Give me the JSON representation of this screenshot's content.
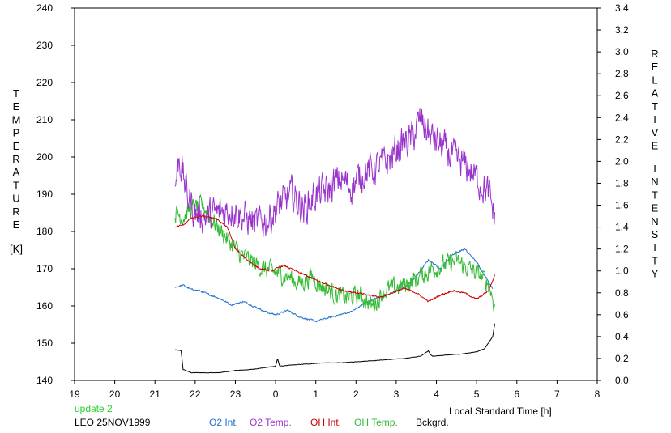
{
  "status_text": "update 2",
  "status_color": "#2ecc2e",
  "station_label": "LEO 25NOV1999",
  "chart_data": {
    "type": "line",
    "xlabel": "Local Standard Time [h]",
    "ylabel_left": "TEMPERATURE",
    "ylabel_left_unit": "[K]",
    "ylabel_right": "RELATIVE INTENSITY",
    "x_ticks": [
      "19",
      "20",
      "21",
      "22",
      "23",
      "0",
      "1",
      "2",
      "3",
      "4",
      "5",
      "6",
      "7",
      "8"
    ],
    "x_range": [
      19,
      32
    ],
    "y_left_range": [
      140,
      240
    ],
    "y_left_ticks": [
      "140",
      "150",
      "160",
      "170",
      "180",
      "190",
      "200",
      "210",
      "220",
      "230",
      "240"
    ],
    "y_right_range": [
      0.0,
      3.4
    ],
    "y_right_ticks": [
      "0.0",
      "0.2",
      "0.4",
      "0.6",
      "0.8",
      "1.0",
      "1.2",
      "1.4",
      "1.6",
      "1.8",
      "2.0",
      "2.2",
      "2.4",
      "2.6",
      "2.8",
      "3.0",
      "3.2",
      "3.4"
    ],
    "grid": false,
    "legend_position": "bottom",
    "series": [
      {
        "name": "O2 Int.",
        "axis": "right",
        "color": "#1f6fd0",
        "noise": 0.012,
        "x": [
          21.5,
          21.7,
          21.9,
          22.1,
          22.3,
          22.6,
          22.9,
          23.2,
          23.5,
          23.8,
          24.0,
          24.3,
          24.6,
          25.0,
          25.3,
          25.6,
          25.9,
          26.2,
          26.5,
          26.9,
          27.2,
          27.5,
          27.8,
          28.1,
          28.4,
          28.7,
          29.0,
          29.3,
          29.4
        ],
        "y": [
          0.85,
          0.87,
          0.83,
          0.82,
          0.79,
          0.75,
          0.69,
          0.72,
          0.67,
          0.62,
          0.6,
          0.64,
          0.58,
          0.54,
          0.57,
          0.6,
          0.63,
          0.7,
          0.75,
          0.8,
          0.85,
          0.95,
          1.1,
          1.02,
          1.15,
          1.2,
          1.08,
          0.9,
          0.84
        ]
      },
      {
        "name": "O2 Temp.",
        "axis": "left",
        "color": "#9933cc",
        "noise": 7,
        "x": [
          21.5,
          21.6,
          21.8,
          22.0,
          22.3,
          22.6,
          22.9,
          23.2,
          23.5,
          23.8,
          24.1,
          24.4,
          24.7,
          25.0,
          25.3,
          25.6,
          25.9,
          26.2,
          26.5,
          26.8,
          27.1,
          27.4,
          27.6,
          27.9,
          28.2,
          28.5,
          28.8,
          29.1,
          29.3,
          29.45
        ],
        "y": [
          192,
          200,
          190,
          185,
          184,
          185,
          186,
          184,
          182,
          183,
          187,
          190,
          186,
          190,
          191,
          194,
          192,
          196,
          197,
          199,
          203,
          205,
          210,
          205,
          202,
          199,
          197,
          193,
          190,
          184
        ]
      },
      {
        "name": "OH Int.",
        "axis": "right",
        "color": "#cc0000",
        "noise": 0.012,
        "x": [
          21.5,
          21.7,
          21.9,
          22.2,
          22.5,
          22.8,
          23.0,
          23.3,
          23.6,
          23.9,
          24.2,
          24.5,
          24.8,
          25.1,
          25.4,
          25.7,
          26.0,
          26.3,
          26.6,
          26.9,
          27.2,
          27.5,
          27.8,
          28.1,
          28.4,
          28.7,
          29.0,
          29.3,
          29.45
        ],
        "y": [
          1.4,
          1.42,
          1.48,
          1.5,
          1.48,
          1.4,
          1.2,
          1.1,
          1.02,
          1.0,
          1.05,
          1.0,
          0.95,
          0.9,
          0.86,
          0.82,
          0.8,
          0.78,
          0.76,
          0.8,
          0.84,
          0.8,
          0.72,
          0.78,
          0.82,
          0.8,
          0.74,
          0.82,
          0.96
        ]
      },
      {
        "name": "OH Temp.",
        "axis": "left",
        "color": "#33bb33",
        "noise": 4,
        "x": [
          21.5,
          21.7,
          21.9,
          22.2,
          22.5,
          22.8,
          23.1,
          23.4,
          23.7,
          24.0,
          24.3,
          24.6,
          24.9,
          25.2,
          25.5,
          25.8,
          26.1,
          26.4,
          26.7,
          27.0,
          27.3,
          27.6,
          27.9,
          28.2,
          28.5,
          28.8,
          29.1,
          29.3,
          29.45
        ],
        "y": [
          185,
          184,
          186,
          187,
          182,
          178,
          174,
          172,
          170,
          169,
          168,
          166,
          168,
          165,
          163,
          162,
          163,
          160,
          164,
          165,
          166,
          168,
          170,
          171,
          172,
          170,
          168,
          166,
          160
        ]
      },
      {
        "name": "Bckgrd.",
        "axis": "right",
        "color": "#000000",
        "noise": 0.003,
        "x": [
          21.5,
          21.65,
          21.7,
          21.9,
          22.2,
          22.6,
          23.0,
          23.4,
          23.8,
          24.0,
          24.05,
          24.1,
          24.4,
          24.8,
          25.2,
          25.6,
          26.0,
          26.4,
          26.8,
          27.2,
          27.6,
          27.8,
          27.85,
          27.9,
          28.2,
          28.6,
          29.0,
          29.2,
          29.4,
          29.45
        ],
        "y": [
          0.28,
          0.27,
          0.1,
          0.07,
          0.07,
          0.07,
          0.09,
          0.1,
          0.12,
          0.13,
          0.2,
          0.13,
          0.14,
          0.15,
          0.16,
          0.16,
          0.17,
          0.18,
          0.19,
          0.2,
          0.22,
          0.27,
          0.24,
          0.22,
          0.23,
          0.24,
          0.26,
          0.29,
          0.4,
          0.52
        ]
      }
    ]
  }
}
